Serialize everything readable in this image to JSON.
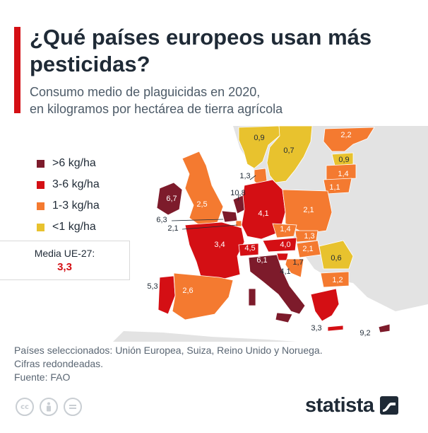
{
  "title": "¿Qué países europeos usan más pesticidas?",
  "subtitle_lines": [
    "Consumo medio de plaguicidas en 2020,",
    "en kilogramos por hectárea de tierra agrícola"
  ],
  "legend": [
    {
      "label": ">6 kg/ha",
      "color": "#7d1b2b"
    },
    {
      "label": "3-6 kg/ha",
      "color": "#d40f14"
    },
    {
      "label": "1-3 kg/ha",
      "color": "#f47a30"
    },
    {
      "label": "<1 kg/ha",
      "color": "#e8c22e"
    }
  ],
  "eu_average": {
    "label": "Media UE-27:",
    "value": "3,3"
  },
  "map_data": {
    "no_data_color": "#e3e3e3",
    "countries": [
      {
        "name": "Noruega",
        "value": "0,9",
        "bin": "<1 kg/ha"
      },
      {
        "name": "Suecia",
        "value": "0,7",
        "bin": "<1 kg/ha"
      },
      {
        "name": "Finlandia",
        "value": "2,2",
        "bin": "1-3 kg/ha"
      },
      {
        "name": "Estonia",
        "value": "0,9",
        "bin": "<1 kg/ha"
      },
      {
        "name": "Letonia",
        "value": "1,4",
        "bin": "1-3 kg/ha"
      },
      {
        "name": "Lituania",
        "value": "1,1",
        "bin": "1-3 kg/ha"
      },
      {
        "name": "Dinamarca",
        "value": "1,3",
        "bin": "1-3 kg/ha"
      },
      {
        "name": "Irlanda",
        "value": "6,7",
        "bin": ">6 kg/ha"
      },
      {
        "name": "Reino Unido",
        "value": "2,5",
        "bin": "1-3 kg/ha"
      },
      {
        "name": "Países Bajos",
        "value": "10,8",
        "bin": ">6 kg/ha"
      },
      {
        "name": "Bélgica",
        "value": "6,3",
        "bin": ">6 kg/ha"
      },
      {
        "name": "Luxemburgo",
        "value": "2,1",
        "bin": "1-3 kg/ha"
      },
      {
        "name": "Alemania",
        "value": "4,1",
        "bin": "3-6 kg/ha"
      },
      {
        "name": "Polonia",
        "value": "2,1",
        "bin": "1-3 kg/ha"
      },
      {
        "name": "Francia",
        "value": "3,4",
        "bin": "3-6 kg/ha"
      },
      {
        "name": "Chequia",
        "value": "1,4",
        "bin": "1-3 kg/ha"
      },
      {
        "name": "Eslovaquia",
        "value": "1,3",
        "bin": "1-3 kg/ha"
      },
      {
        "name": "Austria",
        "value": "4,0",
        "bin": "3-6 kg/ha"
      },
      {
        "name": "Hungría",
        "value": "2,1",
        "bin": "1-3 kg/ha"
      },
      {
        "name": "Suiza",
        "value": "4,5",
        "bin": "3-6 kg/ha"
      },
      {
        "name": "Italia",
        "value": "6,1",
        "bin": ">6 kg/ha"
      },
      {
        "name": "Eslovenia",
        "value": "4,1",
        "bin": "3-6 kg/ha"
      },
      {
        "name": "Croacia",
        "value": "1,7",
        "bin": "1-3 kg/ha"
      },
      {
        "name": "Rumanía",
        "value": "0,6",
        "bin": "<1 kg/ha"
      },
      {
        "name": "Bulgaria",
        "value": "1,2",
        "bin": "1-3 kg/ha"
      },
      {
        "name": "Grecia",
        "value": "3,3",
        "bin": "3-6 kg/ha"
      },
      {
        "name": "Chipre",
        "value": "9,2",
        "bin": ">6 kg/ha"
      },
      {
        "name": "Portugal",
        "value": "5,3",
        "bin": "3-6 kg/ha"
      },
      {
        "name": "España",
        "value": "2,6",
        "bin": "1-3 kg/ha"
      }
    ]
  },
  "footer": {
    "notes": [
      "Países seleccionados: Unión Europea, Suiza, Reino Unido y Noruega.",
      "Cifras redondeadas.",
      "Fuente: FAO"
    ]
  },
  "brand": "statista",
  "icons": [
    "cc-license-icon",
    "attribution-icon",
    "no-derivatives-icon"
  ]
}
